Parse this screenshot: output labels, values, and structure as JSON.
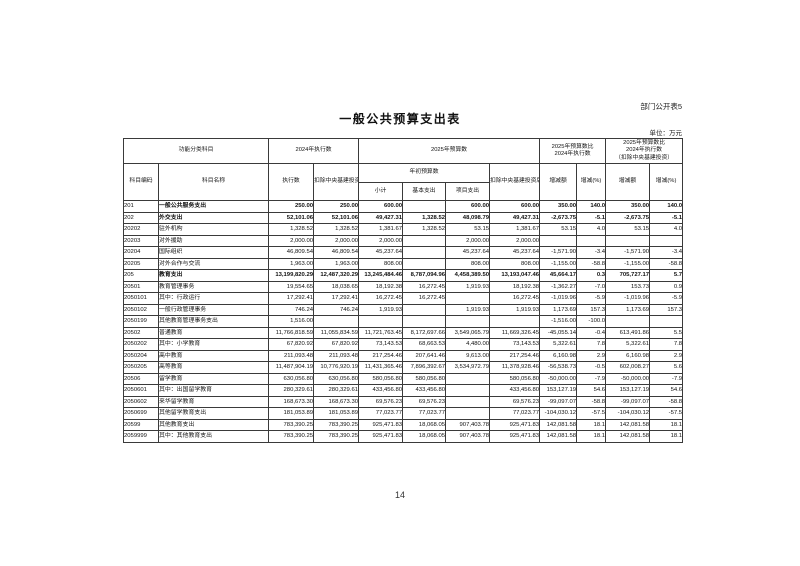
{
  "page": {
    "corner_label": "部门公开表5",
    "title": "一般公共预算支出表",
    "unit_note": "单位：万元",
    "page_number": "14"
  },
  "table": {
    "header": {
      "group_subject": "功能分类科目",
      "group_exec_2024": "2024年执行数",
      "group_budget_2025": "2025年预算数",
      "group_cmp1_line1": "2025年预算数比",
      "group_cmp1_line2": "2024年执行数",
      "group_cmp2_line1": "2025年预算数比",
      "group_cmp2_line2": "2024年执行数",
      "group_cmp2_line3": "（扣除中央基建投资）",
      "col_code": "科目编码",
      "col_name": "科目名称",
      "col_exec": "执行数",
      "col_exec_net": "扣除中央基建投资后执行数",
      "col_initial_budget": "年初预算数",
      "col_subtotal": "小计",
      "col_basic": "基本支出",
      "col_project": "项目支出",
      "col_budget_net": "扣除中央基建投资后预算数",
      "col_delta1": "增减额",
      "col_delta1_pct": "增减(%)",
      "col_delta2": "增减额",
      "col_delta2_pct": "增减(%)"
    },
    "rows": [
      {
        "code": "201",
        "name": "一般公共服务支出",
        "indent": 1,
        "bold": true,
        "exec": "250.00",
        "exec_net": "250.00",
        "subtotal": "600.00",
        "basic": "",
        "project": "600.00",
        "budget_net": "600.00",
        "d1": "350.00",
        "p1": "140.0",
        "d2": "350.00",
        "p2": "140.0"
      },
      {
        "code": "202",
        "name": "外交支出",
        "indent": 1,
        "bold": true,
        "exec": "52,101.06",
        "exec_net": "52,101.06",
        "subtotal": "49,427.31",
        "basic": "1,328.52",
        "project": "48,098.79",
        "budget_net": "49,427.31",
        "d1": "-2,673.75",
        "p1": "-5.1",
        "d2": "-2,673.75",
        "p2": "-5.1"
      },
      {
        "code": "20202",
        "name": "驻外机构",
        "indent": 2,
        "bold": false,
        "exec": "1,328.52",
        "exec_net": "1,328.52",
        "subtotal": "1,381.67",
        "basic": "1,328.52",
        "project": "53.15",
        "budget_net": "1,381.67",
        "d1": "53.15",
        "p1": "4.0",
        "d2": "53.15",
        "p2": "4.0"
      },
      {
        "code": "20203",
        "name": "对外援助",
        "indent": 2,
        "bold": false,
        "exec": "2,000.00",
        "exec_net": "2,000.00",
        "subtotal": "2,000.00",
        "basic": "",
        "project": "2,000.00",
        "budget_net": "2,000.00",
        "d1": "",
        "p1": "",
        "d2": "",
        "p2": ""
      },
      {
        "code": "20204",
        "name": "国际组织",
        "indent": 2,
        "bold": false,
        "exec": "46,809.54",
        "exec_net": "46,809.54",
        "subtotal": "45,237.64",
        "basic": "",
        "project": "45,237.64",
        "budget_net": "45,237.64",
        "d1": "-1,571.90",
        "p1": "-3.4",
        "d2": "-1,571.90",
        "p2": "-3.4"
      },
      {
        "code": "20205",
        "name": "对外合作与交流",
        "indent": 2,
        "bold": false,
        "exec": "1,963.00",
        "exec_net": "1,963.00",
        "subtotal": "808.00",
        "basic": "",
        "project": "808.00",
        "budget_net": "808.00",
        "d1": "-1,155.00",
        "p1": "-58.8",
        "d2": "-1,155.00",
        "p2": "-58.8"
      },
      {
        "code": "205",
        "name": "教育支出",
        "indent": 1,
        "bold": true,
        "exec": "13,199,820.29",
        "exec_net": "12,487,320.29",
        "subtotal": "13,245,484.46",
        "basic": "8,787,094.96",
        "project": "4,458,389.50",
        "budget_net": "13,193,047.46",
        "d1": "45,664.17",
        "p1": "0.3",
        "d2": "705,727.17",
        "p2": "5.7"
      },
      {
        "code": "20501",
        "name": "教育管理事务",
        "indent": 2,
        "bold": false,
        "exec": "19,554.65",
        "exec_net": "18,038.65",
        "subtotal": "18,192.38",
        "basic": "16,272.45",
        "project": "1,919.93",
        "budget_net": "18,192.38",
        "d1": "-1,362.27",
        "p1": "-7.0",
        "d2": "153.73",
        "p2": "0.9"
      },
      {
        "code": "2050101",
        "name": "其中：行政运行",
        "indent": 3,
        "bold": false,
        "exec": "17,292.41",
        "exec_net": "17,292.41",
        "subtotal": "16,272.45",
        "basic": "16,272.45",
        "project": "",
        "budget_net": "16,272.45",
        "d1": "-1,019.96",
        "p1": "-5.9",
        "d2": "-1,019.96",
        "p2": "-5.9"
      },
      {
        "code": "2050102",
        "name": "一般行政管理事务",
        "indent": 4,
        "bold": false,
        "exec": "746.24",
        "exec_net": "746.24",
        "subtotal": "1,919.93",
        "basic": "",
        "project": "1,919.93",
        "budget_net": "1,919.93",
        "d1": "1,173.69",
        "p1": "157.3",
        "d2": "1,173.69",
        "p2": "157.3"
      },
      {
        "code": "2050199",
        "name": "其他教育管理事务支出",
        "indent": 4,
        "bold": false,
        "exec": "1,516.00",
        "exec_net": "",
        "subtotal": "",
        "basic": "",
        "project": "",
        "budget_net": "",
        "d1": "-1,516.00",
        "p1": "-100.0",
        "d2": "",
        "p2": ""
      },
      {
        "code": "20502",
        "name": "普通教育",
        "indent": 2,
        "bold": false,
        "exec": "11,766,818.59",
        "exec_net": "11,055,834.59",
        "subtotal": "11,721,763.45",
        "basic": "8,172,697.66",
        "project": "3,549,065.79",
        "budget_net": "11,669,326.45",
        "d1": "-45,055.14",
        "p1": "-0.4",
        "d2": "613,491.86",
        "p2": "5.5"
      },
      {
        "code": "2050202",
        "name": "其中：小学教育",
        "indent": 3,
        "bold": false,
        "exec": "67,820.92",
        "exec_net": "67,820.92",
        "subtotal": "73,143.53",
        "basic": "68,663.53",
        "project": "4,480.00",
        "budget_net": "73,143.53",
        "d1": "5,322.61",
        "p1": "7.8",
        "d2": "5,322.61",
        "p2": "7.8"
      },
      {
        "code": "2050204",
        "name": "高中教育",
        "indent": 4,
        "bold": false,
        "exec": "211,093.48",
        "exec_net": "211,093.48",
        "subtotal": "217,254.46",
        "basic": "207,641.46",
        "project": "9,613.00",
        "budget_net": "217,254.46",
        "d1": "6,160.98",
        "p1": "2.9",
        "d2": "6,160.98",
        "p2": "2.9"
      },
      {
        "code": "2050205",
        "name": "高等教育",
        "indent": 4,
        "bold": false,
        "exec": "11,487,904.19",
        "exec_net": "10,776,920.19",
        "subtotal": "11,431,365.46",
        "basic": "7,896,392.67",
        "project": "3,534,972.79",
        "budget_net": "11,378,928.46",
        "d1": "-56,538.73",
        "p1": "-0.5",
        "d2": "602,008.27",
        "p2": "5.6"
      },
      {
        "code": "20506",
        "name": "留学教育",
        "indent": 2,
        "bold": false,
        "exec": "630,056.80",
        "exec_net": "630,056.80",
        "subtotal": "580,056.80",
        "basic": "580,056.80",
        "project": "",
        "budget_net": "580,056.80",
        "d1": "-50,000.00",
        "p1": "-7.9",
        "d2": "-50,000.00",
        "p2": "-7.9"
      },
      {
        "code": "2050601",
        "name": "其中：出国留学教育",
        "indent": 3,
        "bold": false,
        "exec": "280,329.61",
        "exec_net": "280,329.61",
        "subtotal": "433,456.80",
        "basic": "433,456.80",
        "project": "",
        "budget_net": "433,456.80",
        "d1": "153,127.19",
        "p1": "54.6",
        "d2": "153,127.19",
        "p2": "54.6"
      },
      {
        "code": "2050602",
        "name": "来华留学教育",
        "indent": 4,
        "bold": false,
        "exec": "168,673.30",
        "exec_net": "168,673.30",
        "subtotal": "69,576.23",
        "basic": "69,576.23",
        "project": "",
        "budget_net": "69,576.23",
        "d1": "-99,097.07",
        "p1": "-58.8",
        "d2": "-99,097.07",
        "p2": "-58.8"
      },
      {
        "code": "2050699",
        "name": "其他留学教育支出",
        "indent": 4,
        "bold": false,
        "exec": "181,053.89",
        "exec_net": "181,053.89",
        "subtotal": "77,023.77",
        "basic": "77,023.77",
        "project": "",
        "budget_net": "77,023.77",
        "d1": "-104,030.12",
        "p1": "-57.5",
        "d2": "-104,030.12",
        "p2": "-57.5"
      },
      {
        "code": "20599",
        "name": "其他教育支出",
        "indent": 2,
        "bold": false,
        "exec": "783,390.25",
        "exec_net": "783,390.25",
        "subtotal": "925,471.83",
        "basic": "18,068.05",
        "project": "907,403.78",
        "budget_net": "925,471.83",
        "d1": "142,081.58",
        "p1": "18.1",
        "d2": "142,081.58",
        "p2": "18.1"
      },
      {
        "code": "2059999",
        "name": "其中：其他教育支出",
        "indent": 3,
        "bold": false,
        "exec": "783,390.25",
        "exec_net": "783,390.25",
        "subtotal": "925,471.83",
        "basic": "18,068.05",
        "project": "907,403.78",
        "budget_net": "925,471.83",
        "d1": "142,081.58",
        "p1": "18.1",
        "d2": "142,081.58",
        "p2": "18.1"
      }
    ]
  }
}
